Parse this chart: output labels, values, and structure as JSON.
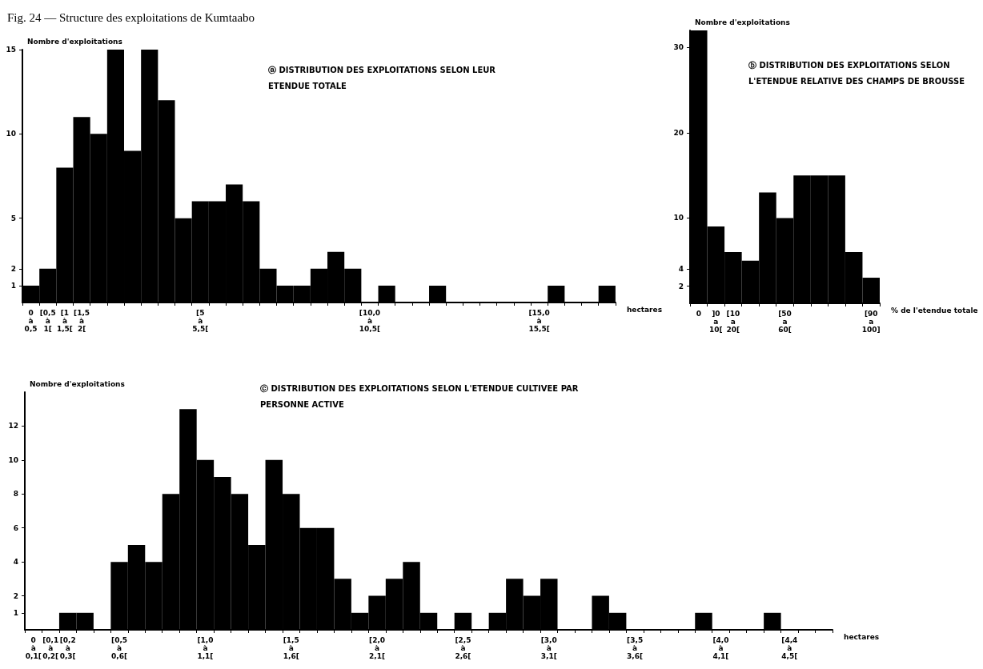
{
  "chart_data": [
    {
      "type": "bar",
      "title": "Fig. 24 — Structure des exploitations de Kumtaabo",
      "subtitle": "ⓐ DISTRIBUTION DES EXPLOITATIONS SELON LEUR ETENDUE TOTALE",
      "xlabel": "hectares",
      "ylabel": "Nombre d'exploitations",
      "color": "#000000",
      "categories": [
        "0 à 0,5",
        "[0,5 à 1[",
        "[1 à 1,5[",
        "[1,5 à 2[",
        null,
        null,
        null,
        null,
        null,
        null,
        "[5 à 5,5[",
        null,
        null,
        null,
        null,
        null,
        null,
        null,
        null,
        null,
        "[10,0 à 10,5[",
        null,
        null,
        null,
        null,
        null,
        null,
        null,
        null,
        null,
        "[15,0 à 15,5[",
        null,
        null,
        null,
        null
      ],
      "values": [
        1,
        2,
        8,
        11,
        10,
        15,
        9,
        15,
        12,
        5,
        6,
        6,
        7,
        6,
        2,
        1,
        1,
        2,
        3,
        2,
        0,
        1,
        0,
        0,
        1,
        0,
        0,
        0,
        0,
        0,
        0,
        1,
        0,
        0,
        1
      ],
      "ylim": [
        0,
        15
      ],
      "yticks": [
        1,
        2,
        5,
        10,
        15
      ]
    },
    {
      "type": "bar",
      "title": "ⓑ DISTRIBUTION DES EXPLOITATIONS SELON L'ETENDUE RELATIVE DES CHAMPS DE BROUSSE",
      "xlabel": "% de l'etendue totale",
      "ylabel": "Nombre d'exploitations",
      "color": "#000000",
      "categories": [
        "0",
        "]0 a 10[",
        "[10 a 20[",
        null,
        null,
        "[50 a 60[",
        null,
        null,
        null,
        null,
        "[90 a 100]"
      ],
      "values": [
        32,
        9,
        6,
        5,
        13,
        10,
        15,
        15,
        15,
        6,
        3
      ],
      "ylim": [
        0,
        32
      ],
      "yticks": [
        2,
        4,
        10,
        20,
        30
      ]
    },
    {
      "type": "bar",
      "title": "ⓒ DISTRIBUTION DES EXPLOITATIONS SELON L'ETENDUE CULTIVEE PAR PERSONNE ACTIVE",
      "xlabel": "hectares",
      "ylabel": "Nombre d'exploitations",
      "color": "#000000",
      "categories": [
        "0 à 0,1[",
        "[0,1 à 0,2[",
        "[0,2 à 0,3[",
        null,
        null,
        "[0,5 à 0,6[",
        null,
        null,
        null,
        null,
        "[1,0 à 1,1[",
        null,
        null,
        null,
        null,
        "[1,5 à 1,6[",
        null,
        null,
        null,
        null,
        "[2,0 à 2,1[",
        null,
        null,
        null,
        null,
        "[2,5 à 2,6[",
        null,
        null,
        null,
        null,
        "[3,0 à 3,1[",
        null,
        null,
        null,
        null,
        "[3,5 à 3,6[",
        null,
        null,
        null,
        null,
        "[4,0 à 4,1[",
        null,
        null,
        null,
        "[4,4 à 4,5[",
        null,
        null
      ],
      "values": [
        0,
        0,
        1,
        1,
        0,
        4,
        5,
        4,
        8,
        13,
        10,
        9,
        8,
        5,
        10,
        8,
        6,
        6,
        3,
        1,
        2,
        3,
        4,
        1,
        0,
        1,
        0,
        1,
        3,
        2,
        3,
        0,
        0,
        2,
        1,
        0,
        0,
        0,
        0,
        1,
        0,
        0,
        0,
        1,
        0,
        0,
        0
      ],
      "ylim": [
        0,
        14
      ],
      "yticks": [
        1,
        2,
        4,
        6,
        8,
        10,
        12
      ]
    }
  ]
}
